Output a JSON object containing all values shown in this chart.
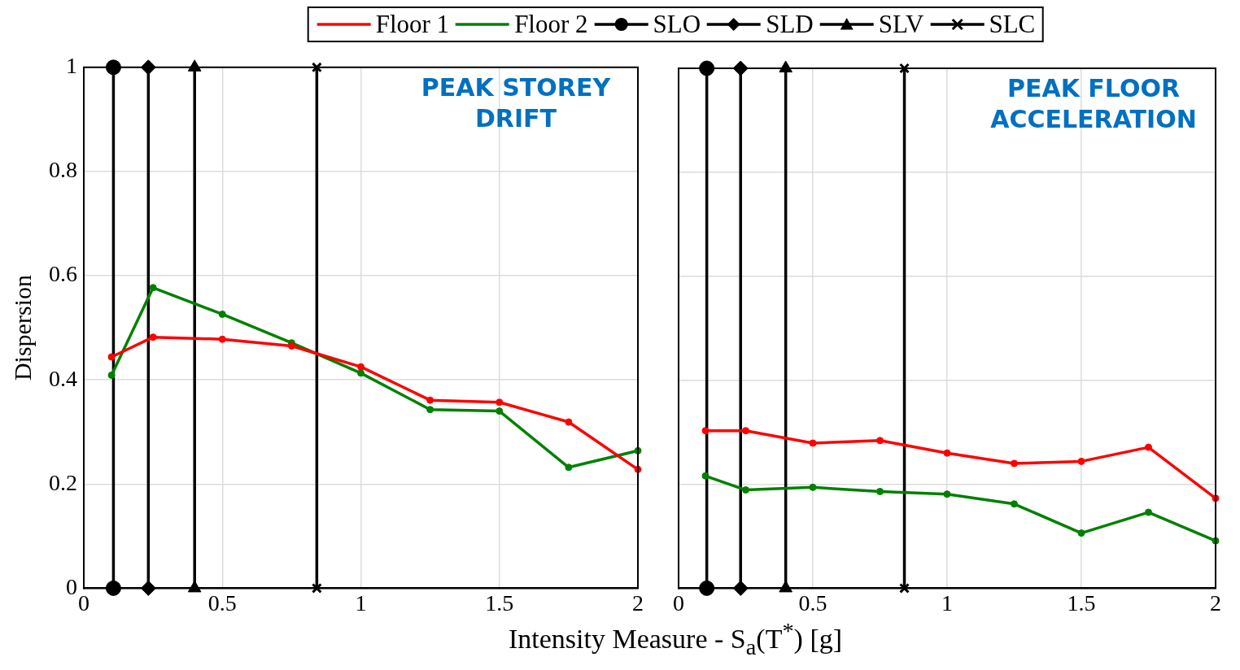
{
  "chart_data": [
    {
      "type": "line",
      "title": "PEAK STOREY DRIFT",
      "xlabel": "Intensity Measure - S$_{a}$(T$^{*}$) [g]",
      "ylabel": "Dispersion",
      "x": [
        0.1,
        0.25,
        0.5,
        0.75,
        1,
        1.25,
        1.5,
        1.75,
        2
      ],
      "xlim": [
        0,
        2
      ],
      "xticks": [
        0,
        0.5,
        1,
        1.5,
        2
      ],
      "ylim": [
        0,
        1
      ],
      "yticks": [
        0,
        0.2,
        0.4,
        0.6,
        0.8,
        1
      ],
      "grid": true,
      "legend": "top",
      "marker": "circle",
      "series": [
        {
          "name": "Floor 1",
          "color": "#ff0000",
          "values": [
            0.444,
            0.482,
            0.478,
            0.465,
            0.425,
            0.361,
            0.357,
            0.319,
            0.228
          ]
        },
        {
          "name": "Floor 2",
          "color": "#008000",
          "values": [
            0.409,
            0.577,
            0.526,
            0.471,
            0.413,
            0.343,
            0.34,
            0.232,
            0.264
          ]
        },
        {
          "name": "SLO",
          "color": "#000000",
          "type": "line",
          "marker": "circle",
          "x": [
            0.107,
            0.107
          ],
          "values": [
            0,
            1
          ]
        },
        {
          "name": "SLD",
          "color": "#000000",
          "type": "line",
          "marker": "diamond",
          "x": [
            0.233,
            0.233
          ],
          "values": [
            0,
            1
          ]
        },
        {
          "name": "SLV",
          "color": "#000000",
          "type": "line",
          "marker": "triangle",
          "x": [
            0.4,
            0.4
          ],
          "values": [
            0,
            1
          ]
        },
        {
          "name": "SLC",
          "color": "#000000",
          "type": "line",
          "marker": "cross",
          "x": [
            0.841,
            0.841
          ],
          "values": [
            0,
            1
          ]
        }
      ]
    },
    {
      "type": "line",
      "title": "PEAK FLOOR ACCELERATION",
      "x": [
        0.1,
        0.25,
        0.5,
        0.75,
        1,
        1.25,
        1.5,
        1.75,
        2
      ],
      "xlim": [
        0,
        2
      ],
      "xticks": [
        0,
        0.5,
        1,
        1.5,
        2
      ],
      "ylim": [
        0,
        1
      ],
      "yticks": [
        0,
        0.2,
        0.4,
        0.6,
        0.8,
        1
      ],
      "grid": true,
      "tick_labels": "x",
      "marker": "circle",
      "series": [
        {
          "color": "#ff0000",
          "values": [
            0.303,
            0.303,
            0.279,
            0.284,
            0.26,
            0.24,
            0.244,
            0.271,
            0.173
          ]
        },
        {
          "color": "#008000",
          "values": [
            0.216,
            0.189,
            0.194,
            0.186,
            0.181,
            0.162,
            0.106,
            0.146,
            0.091
          ]
        },
        {
          "color": "#000000",
          "type": "line",
          "marker": "circle",
          "x": [
            0.105,
            0.105
          ],
          "values": [
            0,
            1
          ]
        },
        {
          "color": "#000000",
          "type": "line",
          "marker": "diamond",
          "x": [
            0.231,
            0.231
          ],
          "values": [
            0,
            1
          ]
        },
        {
          "color": "#000000",
          "type": "line",
          "marker": "triangle",
          "x": [
            0.399,
            0.399
          ],
          "values": [
            0,
            1
          ]
        },
        {
          "color": "#000000",
          "type": "line",
          "marker": "cross",
          "x": [
            0.841,
            0.841
          ],
          "values": [
            0,
            1
          ]
        }
      ]
    }
  ]
}
